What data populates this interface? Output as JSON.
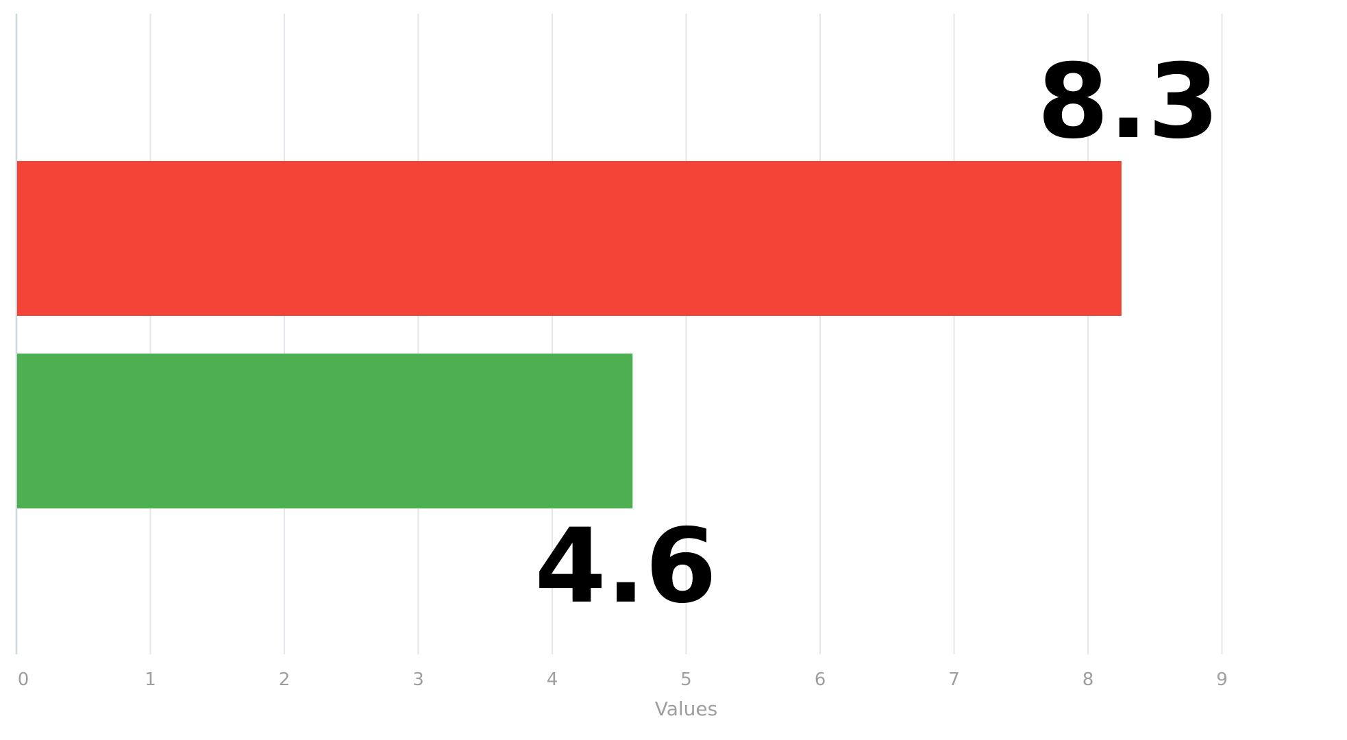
{
  "chart_data": {
    "type": "bar",
    "orientation": "horizontal",
    "categories": [
      "",
      ""
    ],
    "values": [
      8.25,
      4.6
    ],
    "data_labels": [
      "8.3",
      "4.6"
    ],
    "colors": [
      "#f44438",
      "#4daf52"
    ],
    "xlabel": "Values",
    "ylabel": "",
    "xlim": [
      0,
      10
    ],
    "ticks": [
      "0",
      "1",
      "2",
      "3",
      "4",
      "5",
      "6",
      "7",
      "8",
      "9",
      "1"
    ],
    "grid": true,
    "legend": "none"
  }
}
